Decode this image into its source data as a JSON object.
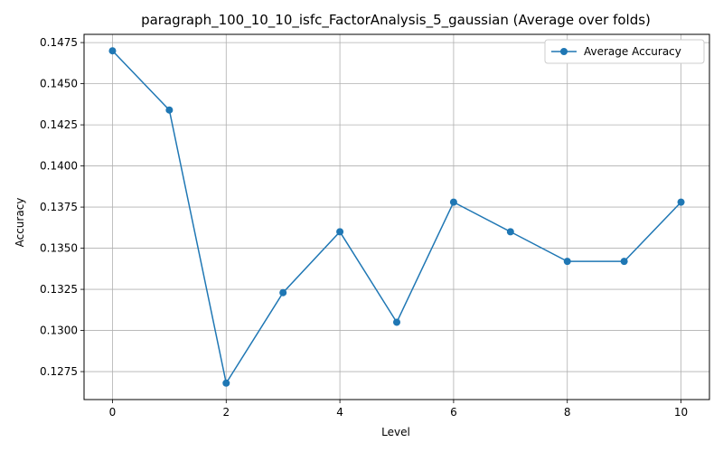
{
  "chart_data": {
    "type": "line",
    "title": "paragraph_100_10_10_isfc_FactorAnalysis_5_gaussian (Average over folds)",
    "xlabel": "Level",
    "ylabel": "Accuracy",
    "xlim": [
      -0.5,
      10.5
    ],
    "ylim": [
      0.1258,
      0.148
    ],
    "xticks": [
      0,
      2,
      4,
      6,
      8,
      10
    ],
    "xtick_labels": [
      "0",
      "2",
      "4",
      "6",
      "8",
      "10"
    ],
    "yticks": [
      0.1275,
      0.13,
      0.1325,
      0.135,
      0.1375,
      0.14,
      0.1425,
      0.145,
      0.1475
    ],
    "ytick_labels": [
      "0.1275",
      "0.1300",
      "0.1325",
      "0.1350",
      "0.1375",
      "0.1400",
      "0.1425",
      "0.1450",
      "0.1475"
    ],
    "grid": true,
    "legend_position": "top-right",
    "color": "#1f77b4",
    "series": [
      {
        "name": "Average Accuracy",
        "x": [
          0,
          1,
          2,
          3,
          4,
          5,
          6,
          7,
          8,
          9,
          10
        ],
        "values": [
          0.147,
          0.1434,
          0.1268,
          0.1323,
          0.136,
          0.1305,
          0.1378,
          0.136,
          0.1342,
          0.1342,
          0.1378
        ]
      }
    ]
  }
}
